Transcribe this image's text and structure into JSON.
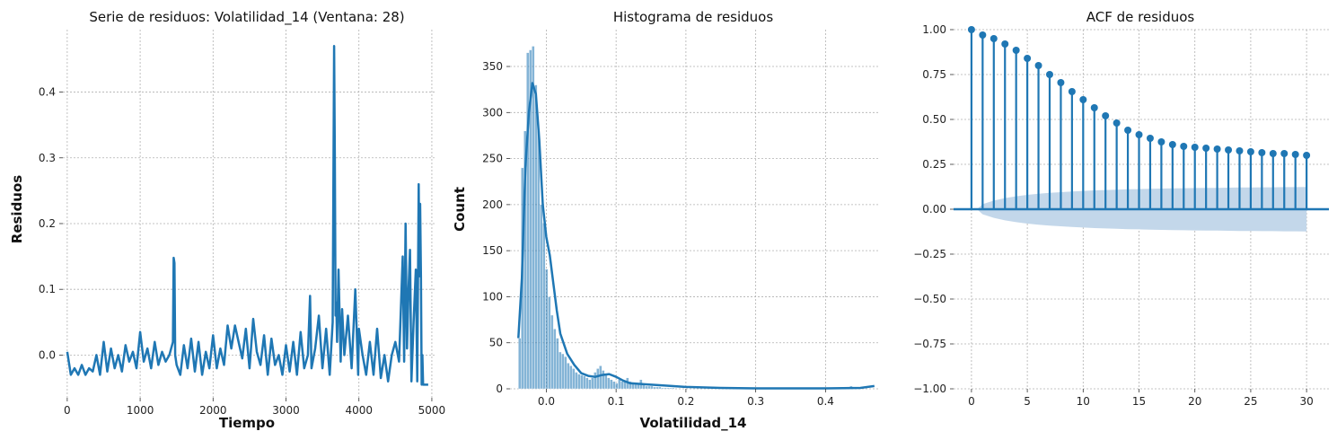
{
  "chart_data": [
    {
      "type": "line",
      "title": "Serie de residuos: Volatilidad_14 (Ventana: 28)",
      "xlabel": "Tiempo",
      "ylabel": "Residuos",
      "xlim": [
        -60,
        5050
      ],
      "ylim": [
        -0.065,
        0.495
      ],
      "xticks": [
        0,
        1000,
        2000,
        3000,
        4000,
        5000
      ],
      "yticks": [
        0.0,
        0.1,
        0.2,
        0.3,
        0.4
      ],
      "ytick_labels": [
        "0.0",
        "0.1",
        "0.2",
        "0.3",
        "0.4"
      ],
      "grid": true,
      "color": "#1f77b4",
      "x": [
        0,
        50,
        100,
        150,
        200,
        250,
        300,
        350,
        400,
        450,
        500,
        550,
        600,
        650,
        700,
        750,
        800,
        850,
        900,
        950,
        1000,
        1050,
        1100,
        1150,
        1200,
        1250,
        1300,
        1350,
        1400,
        1450,
        1460,
        1470,
        1480,
        1500,
        1550,
        1600,
        1650,
        1700,
        1750,
        1800,
        1850,
        1900,
        1950,
        2000,
        2050,
        2100,
        2150,
        2200,
        2250,
        2300,
        2350,
        2400,
        2450,
        2500,
        2550,
        2600,
        2650,
        2700,
        2750,
        2800,
        2850,
        2900,
        2950,
        3000,
        3050,
        3100,
        3150,
        3200,
        3250,
        3300,
        3330,
        3350,
        3400,
        3450,
        3500,
        3550,
        3600,
        3640,
        3660,
        3670,
        3680,
        3690,
        3700,
        3720,
        3750,
        3770,
        3800,
        3850,
        3900,
        3950,
        3990,
        4000,
        4050,
        4100,
        4150,
        4200,
        4250,
        4300,
        4350,
        4400,
        4450,
        4500,
        4550,
        4600,
        4620,
        4640,
        4660,
        4680,
        4700,
        4720,
        4750,
        4780,
        4800,
        4820,
        4830,
        4840,
        4850,
        4860,
        4870,
        4880,
        4900,
        4950
      ],
      "y": [
        0.005,
        -0.03,
        -0.02,
        -0.03,
        -0.015,
        -0.03,
        -0.02,
        -0.025,
        0.0,
        -0.03,
        0.02,
        -0.025,
        0.01,
        -0.02,
        0.0,
        -0.025,
        0.015,
        -0.01,
        0.005,
        -0.02,
        0.035,
        -0.01,
        0.01,
        -0.02,
        0.02,
        -0.015,
        0.005,
        -0.01,
        0.0,
        0.02,
        0.148,
        0.14,
        0.0,
        -0.015,
        -0.03,
        0.015,
        -0.02,
        0.025,
        -0.025,
        0.02,
        -0.03,
        0.005,
        -0.02,
        0.03,
        -0.02,
        0.01,
        -0.015,
        0.045,
        0.01,
        0.045,
        0.02,
        -0.005,
        0.04,
        -0.02,
        0.055,
        0.005,
        -0.015,
        0.03,
        -0.03,
        0.025,
        -0.015,
        0.0,
        -0.03,
        0.015,
        -0.025,
        0.02,
        -0.03,
        0.035,
        -0.02,
        0.0,
        0.09,
        -0.02,
        0.01,
        0.06,
        -0.02,
        0.04,
        -0.03,
        0.05,
        0.47,
        0.3,
        0.06,
        0.08,
        0.02,
        0.13,
        -0.01,
        0.07,
        0.0,
        0.06,
        -0.02,
        0.1,
        -0.03,
        0.04,
        0.0,
        -0.03,
        0.02,
        -0.03,
        0.04,
        -0.035,
        0.0,
        -0.04,
        0.0,
        0.02,
        -0.01,
        0.15,
        -0.01,
        0.2,
        0.01,
        0.1,
        0.16,
        -0.04,
        0.05,
        0.13,
        -0.04,
        0.26,
        0.12,
        0.23,
        0.12,
        -0.045,
        0.0,
        -0.045,
        -0.045,
        -0.045
      ]
    },
    {
      "type": "bar",
      "title": "Histograma de residuos",
      "xlabel": "Volatilidad_14",
      "ylabel": "Count",
      "xlim": [
        -0.052,
        0.478
      ],
      "ylim": [
        0,
        390
      ],
      "xticks": [
        0.0,
        0.1,
        0.2,
        0.3,
        0.4
      ],
      "xtick_labels": [
        "0.0",
        "0.1",
        "0.2",
        "0.3",
        "0.4"
      ],
      "yticks": [
        0,
        50,
        100,
        150,
        200,
        250,
        300,
        350
      ],
      "grid": true,
      "bin_start": -0.04,
      "bin_width": 0.00386,
      "values": [
        55,
        240,
        280,
        365,
        368,
        372,
        330,
        280,
        200,
        180,
        130,
        100,
        80,
        65,
        55,
        40,
        38,
        35,
        28,
        25,
        22,
        18,
        16,
        15,
        14,
        12,
        10,
        12,
        18,
        22,
        25,
        20,
        15,
        12,
        10,
        8,
        6,
        10,
        8,
        8,
        12,
        8,
        6,
        5,
        6,
        10,
        4,
        3,
        3,
        3,
        2,
        2,
        2,
        1,
        1,
        1,
        1,
        1,
        0,
        0,
        0,
        0,
        0,
        0,
        0,
        0,
        0,
        0,
        0,
        0,
        0,
        0,
        0,
        0,
        0,
        0,
        0,
        0,
        0,
        0,
        0,
        0,
        0,
        0,
        0,
        0,
        0,
        0,
        0,
        0,
        0,
        0,
        0,
        0,
        0,
        0,
        0,
        0,
        0,
        0,
        0,
        0,
        0,
        0,
        0,
        0,
        0,
        0,
        0,
        0,
        0,
        0,
        0,
        0,
        0,
        0,
        0,
        0,
        0,
        0,
        0,
        0,
        2,
        3
      ],
      "kde_x": [
        -0.04,
        -0.035,
        -0.03,
        -0.025,
        -0.02,
        -0.015,
        -0.01,
        -0.005,
        0.0,
        0.005,
        0.01,
        0.015,
        0.02,
        0.03,
        0.04,
        0.05,
        0.06,
        0.07,
        0.08,
        0.09,
        0.1,
        0.11,
        0.12,
        0.14,
        0.16,
        0.18,
        0.2,
        0.25,
        0.3,
        0.35,
        0.4,
        0.45,
        0.47
      ],
      "kde_y": [
        55,
        120,
        240,
        300,
        332,
        320,
        270,
        200,
        165,
        145,
        115,
        85,
        60,
        38,
        26,
        17,
        14,
        13,
        15,
        16,
        13,
        9,
        6,
        5,
        4,
        3,
        2,
        1,
        0.5,
        0.5,
        0.5,
        1,
        3
      ],
      "color": "#1f77b4"
    },
    {
      "type": "scatter",
      "title": "ACF de residuos",
      "xlabel": "",
      "ylabel": "",
      "xlim": [
        -1.6,
        32
      ],
      "ylim": [
        -1.0,
        1.0
      ],
      "xticks": [
        0,
        5,
        10,
        15,
        20,
        25,
        30
      ],
      "yticks": [
        -1.0,
        -0.75,
        -0.5,
        -0.25,
        0.0,
        0.25,
        0.5,
        0.75,
        1.0
      ],
      "ytick_labels": [
        "−1.00",
        "−0.75",
        "−0.50",
        "−0.25",
        "0.00",
        "0.25",
        "0.50",
        "0.75",
        "1.00"
      ],
      "grid": true,
      "lags": [
        0,
        1,
        2,
        3,
        4,
        5,
        6,
        7,
        8,
        9,
        10,
        11,
        12,
        13,
        14,
        15,
        16,
        17,
        18,
        19,
        20,
        21,
        22,
        23,
        24,
        25,
        26,
        27,
        28,
        29,
        30
      ],
      "acf": [
        1.0,
        0.97,
        0.95,
        0.92,
        0.885,
        0.84,
        0.8,
        0.75,
        0.705,
        0.655,
        0.61,
        0.565,
        0.52,
        0.48,
        0.44,
        0.415,
        0.395,
        0.375,
        0.36,
        0.35,
        0.345,
        0.34,
        0.335,
        0.33,
        0.325,
        0.32,
        0.315,
        0.31,
        0.31,
        0.305,
        0.3
      ],
      "conf_upper": [
        0.0,
        0.028,
        0.048,
        0.062,
        0.072,
        0.08,
        0.086,
        0.091,
        0.095,
        0.099,
        0.102,
        0.105,
        0.107,
        0.109,
        0.111,
        0.112,
        0.114,
        0.115,
        0.116,
        0.117,
        0.118,
        0.119,
        0.119,
        0.12,
        0.121,
        0.121,
        0.122,
        0.122,
        0.123,
        0.123,
        0.124
      ],
      "color": "#1f77b4",
      "band_color": "#c3d7ea"
    }
  ]
}
